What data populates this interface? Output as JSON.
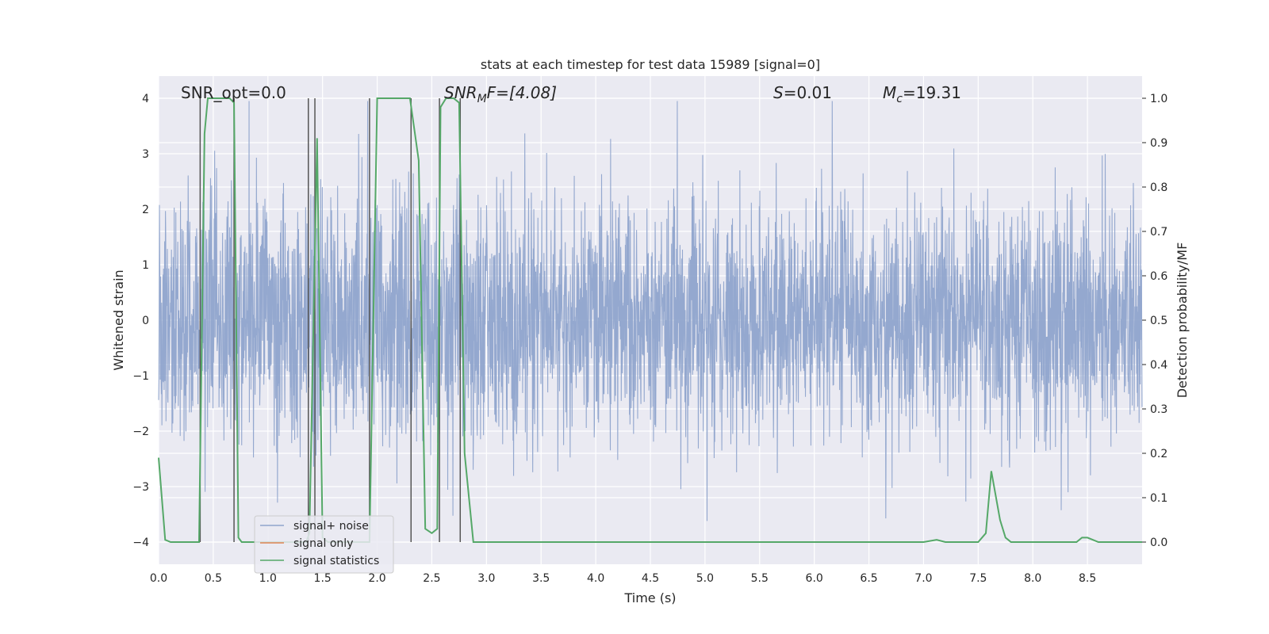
{
  "chart_data": {
    "type": "line",
    "title": "stats at each timestep for test data 15989 [signal=0]",
    "xlabel": "Time (s)",
    "ylabel": "Whitened strain",
    "y2label": "Detection probability/MF",
    "xlim": [
      0.0,
      9.0
    ],
    "ylim": [
      -4.4,
      4.4
    ],
    "y2lim": [
      -0.05,
      1.05
    ],
    "xticks": [
      0.0,
      0.5,
      1.0,
      1.5,
      2.0,
      2.5,
      3.0,
      3.5,
      4.0,
      4.5,
      5.0,
      5.5,
      6.0,
      6.5,
      7.0,
      7.5,
      8.0,
      8.5
    ],
    "xtick_labels": [
      "0.0",
      "0.5",
      "1.0",
      "1.5",
      "2.0",
      "2.5",
      "3.0",
      "3.5",
      "4.0",
      "4.5",
      "5.0",
      "5.5",
      "6.0",
      "6.5",
      "7.0",
      "7.5",
      "8.0",
      "8.5"
    ],
    "yticks": [
      -4,
      -3,
      -2,
      -1,
      0,
      1,
      2,
      3,
      4
    ],
    "ytick_labels": [
      "−4",
      "−3",
      "−2",
      "−1",
      "0",
      "1",
      "2",
      "3",
      "4"
    ],
    "y2ticks": [
      0.0,
      0.1,
      0.2,
      0.3,
      0.4,
      0.5,
      0.6,
      0.7,
      0.8,
      0.9,
      1.0
    ],
    "y2tick_labels": [
      "0.0",
      "0.1",
      "0.2",
      "0.3",
      "0.4",
      "0.5",
      "0.6",
      "0.7",
      "0.8",
      "0.9",
      "1.0"
    ],
    "grid": true,
    "legend_position": "lower-left",
    "annotations": {
      "snr_opt": "SNR_opt=0.0",
      "snr_mf_main": "SNR",
      "snr_mf_sub": "M",
      "snr_mf_rest": "F=[4.08]",
      "s_main": "S",
      "s_rest": "=0.01",
      "mc_main": "M",
      "mc_sub": "c",
      "mc_rest": "=19.31"
    },
    "series": [
      {
        "name": "signal+ noise",
        "color": "#8fa4cc",
        "kind": "noise",
        "sigma_envelope": [
          [
            0.0,
            1.15
          ],
          [
            0.5,
            1.15
          ],
          [
            1.0,
            1.1
          ],
          [
            1.5,
            1.15
          ],
          [
            2.0,
            1.2
          ],
          [
            2.5,
            1.2
          ],
          [
            3.0,
            1.15
          ],
          [
            3.5,
            1.1
          ],
          [
            4.0,
            1.0
          ],
          [
            4.5,
            1.1
          ],
          [
            5.0,
            1.1
          ],
          [
            5.5,
            1.05
          ],
          [
            6.0,
            1.0
          ],
          [
            6.5,
            1.0
          ],
          [
            7.0,
            1.05
          ],
          [
            7.5,
            1.1
          ],
          [
            8.0,
            1.1
          ],
          [
            8.5,
            1.05
          ],
          [
            9.0,
            1.0
          ]
        ]
      },
      {
        "name": "signal only",
        "color": "#dd8452",
        "kind": "line",
        "x": [],
        "y": []
      },
      {
        "name": "signal statistics",
        "color": "#55a868",
        "kind": "line",
        "axis": "right",
        "x": [
          0.0,
          0.06,
          0.11,
          0.2,
          0.3,
          0.37,
          0.42,
          0.45,
          0.55,
          0.65,
          0.69,
          0.73,
          0.76,
          0.8,
          0.9,
          1.0,
          1.1,
          1.2,
          1.3,
          1.35,
          1.38,
          1.45,
          1.5,
          1.55,
          1.6,
          1.7,
          1.8,
          1.9,
          1.93,
          2.0,
          2.1,
          2.2,
          2.3,
          2.38,
          2.44,
          2.5,
          2.55,
          2.58,
          2.63,
          2.7,
          2.75,
          2.8,
          2.88,
          2.95,
          3.0,
          3.5,
          4.0,
          4.5,
          5.0,
          5.5,
          6.0,
          6.5,
          7.0,
          7.12,
          7.2,
          7.3,
          7.4,
          7.5,
          7.57,
          7.62,
          7.7,
          7.75,
          7.8,
          7.9,
          8.0,
          8.1,
          8.2,
          8.3,
          8.4,
          8.45,
          8.5,
          8.55,
          8.6,
          8.7,
          8.8,
          8.9,
          9.0
        ],
        "y": [
          0.19,
          0.005,
          0.0,
          0.0,
          0.0,
          0.0,
          0.92,
          1.0,
          1.0,
          1.0,
          0.99,
          0.01,
          0.0,
          0.0,
          0.0,
          0.0,
          0.0,
          0.0,
          0.0,
          0.0,
          0.02,
          0.91,
          0.01,
          0.0,
          0.0,
          0.0,
          0.0,
          0.0,
          0.0,
          1.0,
          1.0,
          1.0,
          1.0,
          0.86,
          0.03,
          0.02,
          0.03,
          0.98,
          1.0,
          1.0,
          0.99,
          0.2,
          0.0,
          0.0,
          0.0,
          0.0,
          0.0,
          0.0,
          0.0,
          0.0,
          0.0,
          0.0,
          0.0,
          0.005,
          0.0,
          0.0,
          0.0,
          0.0,
          0.02,
          0.16,
          0.05,
          0.01,
          0.0,
          0.0,
          0.0,
          0.0,
          0.0,
          0.0,
          0.0,
          0.01,
          0.01,
          0.005,
          0.0,
          0.0,
          0.0,
          0.0,
          0.0
        ]
      }
    ],
    "vertical_markers": {
      "color": "#555555",
      "x": [
        0.38,
        0.69,
        1.37,
        1.43,
        1.93,
        2.31,
        2.57,
        2.76
      ],
      "y_top": 4.0,
      "y_bottom": -4.0
    }
  }
}
